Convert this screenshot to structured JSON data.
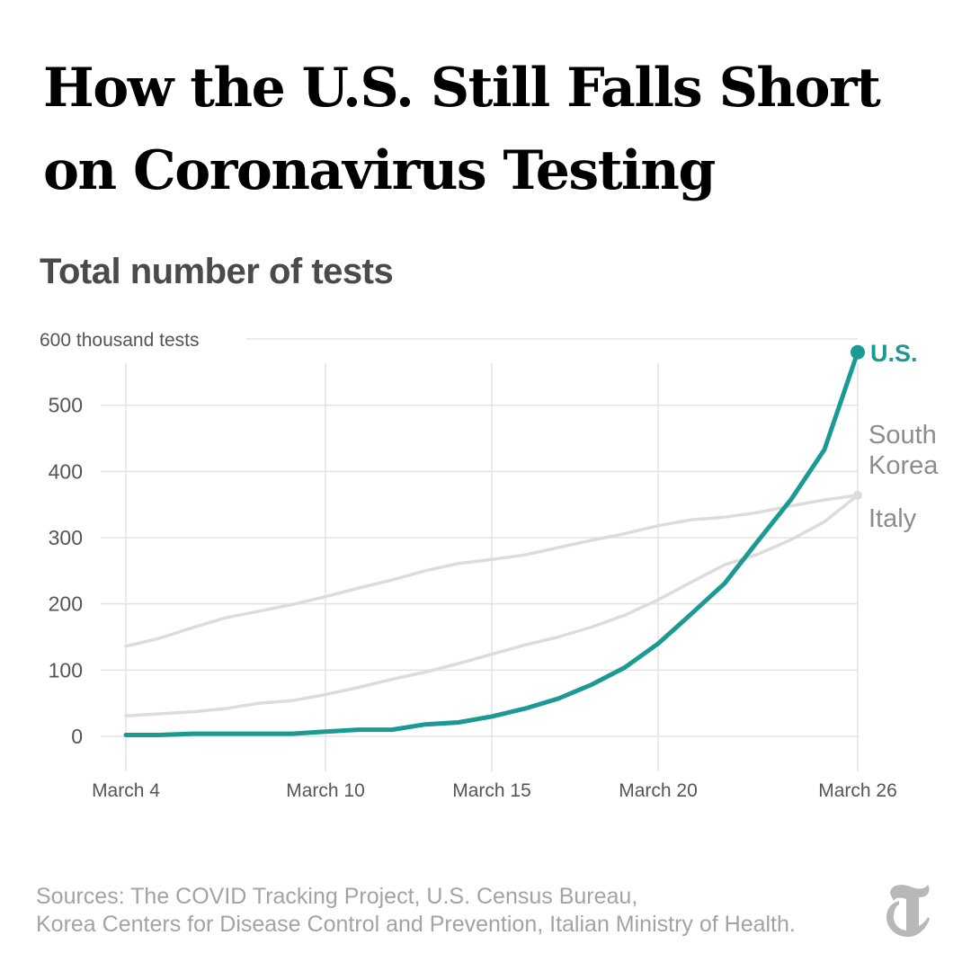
{
  "headline": {
    "line1": "How the U.S. Still Falls Short",
    "line2": "on Coronavirus Testing"
  },
  "subtitle": "Total number of tests",
  "colors": {
    "us": "#1a9a92",
    "comparison": "#dcdcdc",
    "grid": "#e3e3e3",
    "axis_text": "#555555",
    "label_text": "#8c8c8c",
    "headline": "#000000",
    "sources": "#a3a3a3"
  },
  "chart_data": {
    "type": "line",
    "ylim": [
      0,
      600
    ],
    "yticks": [
      {
        "value": 600,
        "label": "600 thousand tests"
      },
      {
        "value": 500,
        "label": "500"
      },
      {
        "value": 400,
        "label": "400"
      },
      {
        "value": 300,
        "label": "300"
      },
      {
        "value": 200,
        "label": "200"
      },
      {
        "value": 100,
        "label": "100"
      },
      {
        "value": 0,
        "label": "0"
      }
    ],
    "xlim": [
      "2020-03-04",
      "2020-03-26"
    ],
    "xticks": [
      {
        "date": "2020-03-04",
        "label": "March 4"
      },
      {
        "date": "2020-03-10",
        "label": "March 10"
      },
      {
        "date": "2020-03-15",
        "label": "March 15"
      },
      {
        "date": "2020-03-20",
        "label": "March 20"
      },
      {
        "date": "2020-03-26",
        "label": "March 26"
      }
    ],
    "dates": [
      "2020-03-04",
      "2020-03-05",
      "2020-03-06",
      "2020-03-07",
      "2020-03-08",
      "2020-03-09",
      "2020-03-10",
      "2020-03-11",
      "2020-03-12",
      "2020-03-13",
      "2020-03-14",
      "2020-03-15",
      "2020-03-16",
      "2020-03-17",
      "2020-03-18",
      "2020-03-19",
      "2020-03-20",
      "2020-03-21",
      "2020-03-22",
      "2020-03-23",
      "2020-03-24",
      "2020-03-25",
      "2020-03-26"
    ],
    "series": [
      {
        "name": "U.S.",
        "key": "us",
        "values": [
          2,
          2,
          4,
          4,
          4,
          4,
          7,
          10,
          10,
          18,
          21,
          30,
          42,
          57,
          78,
          104,
          140,
          185,
          231,
          295,
          358,
          433,
          580
        ]
      },
      {
        "name": "South Korea",
        "key": "south_korea",
        "values": [
          136,
          148,
          164,
          179,
          189,
          199,
          211,
          224,
          236,
          250,
          261,
          267,
          274,
          285,
          296,
          306,
          318,
          327,
          331,
          338,
          348,
          357,
          364
        ]
      },
      {
        "name": "Italy",
        "key": "italy",
        "values": [
          31,
          34,
          37,
          42,
          50,
          54,
          63,
          74,
          86,
          97,
          110,
          124,
          138,
          150,
          165,
          183,
          206,
          233,
          259,
          275,
          297,
          324,
          364
        ]
      }
    ],
    "labels": {
      "us": "U.S.",
      "south_korea_line1": "South",
      "south_korea_line2": "Korea",
      "italy": "Italy"
    }
  },
  "sources": {
    "line1": "Sources: The COVID Tracking Project, U.S. Census Bureau,",
    "line2": "Korea Centers for Disease Control and Prevention, Italian Ministry of Health."
  },
  "logo_icon": "nyt-t-logo-icon"
}
